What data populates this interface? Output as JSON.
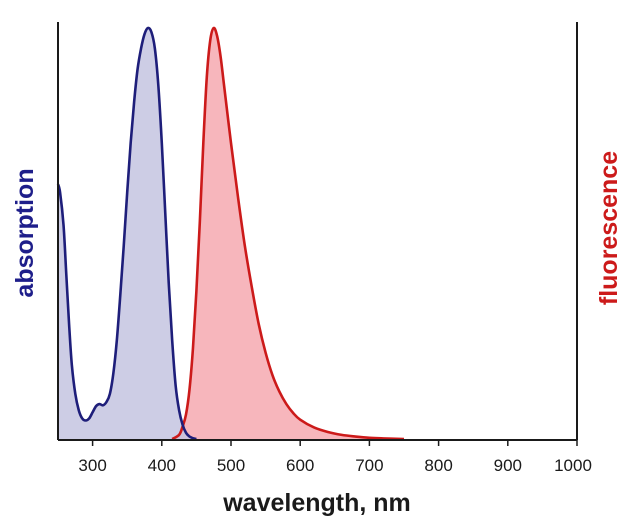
{
  "chart_data": {
    "type": "area",
    "xlabel": "wavelength, nm",
    "ylabel_left": "absorption",
    "ylabel_right": "fluorescence",
    "xlim": [
      250,
      1000
    ],
    "ylim": [
      0,
      1
    ],
    "x_ticks": [
      300,
      400,
      500,
      600,
      700,
      800,
      900,
      1000
    ],
    "grid": false,
    "series": [
      {
        "axis": "left",
        "color": "#1e1e7a",
        "fill": "#c4c4e0",
        "points": [
          [
            250,
            0.62
          ],
          [
            253,
            0.6
          ],
          [
            258,
            0.52
          ],
          [
            262,
            0.4
          ],
          [
            266,
            0.28
          ],
          [
            270,
            0.18
          ],
          [
            275,
            0.11
          ],
          [
            280,
            0.07
          ],
          [
            285,
            0.05
          ],
          [
            290,
            0.045
          ],
          [
            295,
            0.05
          ],
          [
            300,
            0.065
          ],
          [
            305,
            0.08
          ],
          [
            310,
            0.085
          ],
          [
            315,
            0.082
          ],
          [
            320,
            0.09
          ],
          [
            325,
            0.11
          ],
          [
            330,
            0.16
          ],
          [
            335,
            0.24
          ],
          [
            340,
            0.35
          ],
          [
            345,
            0.47
          ],
          [
            350,
            0.6
          ],
          [
            355,
            0.72
          ],
          [
            360,
            0.82
          ],
          [
            365,
            0.9
          ],
          [
            370,
            0.95
          ],
          [
            375,
            0.985
          ],
          [
            380,
            1.0
          ],
          [
            385,
            0.99
          ],
          [
            390,
            0.95
          ],
          [
            395,
            0.86
          ],
          [
            400,
            0.72
          ],
          [
            405,
            0.55
          ],
          [
            410,
            0.38
          ],
          [
            415,
            0.24
          ],
          [
            420,
            0.13
          ],
          [
            425,
            0.07
          ],
          [
            430,
            0.035
          ],
          [
            435,
            0.015
          ],
          [
            440,
            0.006
          ],
          [
            445,
            0.002
          ],
          [
            450,
            0.0
          ]
        ]
      },
      {
        "axis": "right",
        "color": "#cc1a1a",
        "fill": "#f7b6bc",
        "points": [
          [
            415,
            0.0
          ],
          [
            425,
            0.01
          ],
          [
            430,
            0.03
          ],
          [
            435,
            0.06
          ],
          [
            440,
            0.12
          ],
          [
            445,
            0.22
          ],
          [
            450,
            0.36
          ],
          [
            455,
            0.53
          ],
          [
            460,
            0.72
          ],
          [
            465,
            0.88
          ],
          [
            470,
            0.97
          ],
          [
            475,
            1.0
          ],
          [
            480,
            0.98
          ],
          [
            485,
            0.93
          ],
          [
            490,
            0.86
          ],
          [
            500,
            0.72
          ],
          [
            510,
            0.59
          ],
          [
            520,
            0.47
          ],
          [
            530,
            0.37
          ],
          [
            540,
            0.28
          ],
          [
            550,
            0.21
          ],
          [
            560,
            0.155
          ],
          [
            570,
            0.115
          ],
          [
            580,
            0.085
          ],
          [
            590,
            0.063
          ],
          [
            600,
            0.047
          ],
          [
            620,
            0.028
          ],
          [
            640,
            0.017
          ],
          [
            660,
            0.01
          ],
          [
            680,
            0.006
          ],
          [
            700,
            0.003
          ],
          [
            720,
            0.0015
          ],
          [
            750,
            0.0
          ]
        ]
      }
    ]
  }
}
